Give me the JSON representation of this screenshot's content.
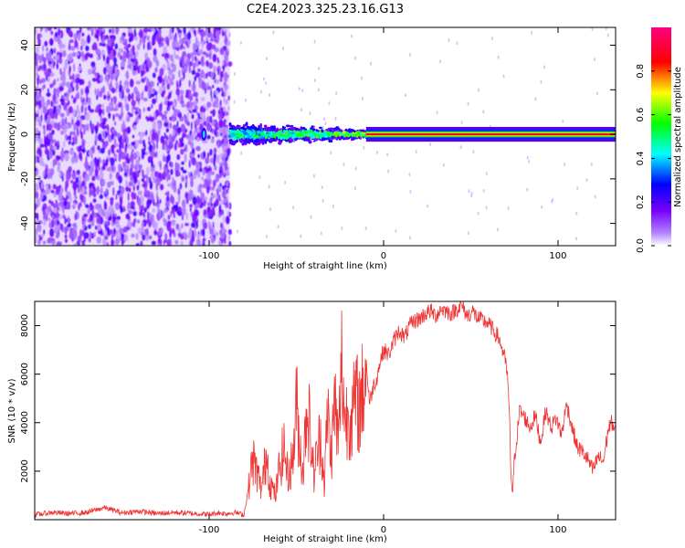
{
  "figure": {
    "title": "C2E4.2023.325.23.16.G13"
  },
  "chart_data": [
    {
      "type": "heatmap",
      "name": "spectrogram",
      "xlabel": "Height of straight line (km)",
      "ylabel": "Frequency (Hz)",
      "xlim": [
        -200,
        133
      ],
      "ylim": [
        -50,
        48
      ],
      "x_ticks": [
        -100,
        0,
        100
      ],
      "x_tick_labels": [
        "-100",
        "0",
        "100"
      ],
      "y_ticks": [
        -40,
        -20,
        0,
        20,
        40
      ],
      "y_tick_labels": [
        "-40",
        "-20",
        "0",
        "20",
        "40"
      ],
      "colorbar": {
        "label": "Normalized spectral amplitude",
        "range": [
          0,
          1
        ],
        "ticks": [
          0.0,
          0.2,
          0.4,
          0.6,
          0.8
        ],
        "tick_labels": [
          "0.0",
          "0.2",
          "0.4",
          "0.6",
          "0.8"
        ],
        "colormap": [
          "#ffffff",
          "#8000ff",
          "#0000ff",
          "#00ffff",
          "#00ff00",
          "#ffff00",
          "#ff0000",
          "#ff00ff"
        ]
      },
      "regions": [
        {
          "description": "noise",
          "x_range": [
            -200,
            -88
          ],
          "freq_range": [
            -50,
            48
          ],
          "amplitude": 0.12
        },
        {
          "description": "noisy carrier",
          "x_range": [
            -88,
            -10
          ],
          "freq_center": 0,
          "freq_halfwidth": 4,
          "amplitude": 0.45
        },
        {
          "description": "clean carrier",
          "x_range": [
            -10,
            133
          ],
          "freq_center": 0,
          "freq_halfwidth": 1.5,
          "amplitude": 0.9
        }
      ]
    },
    {
      "type": "line",
      "name": "snr",
      "xlabel": "Height of straight line (km)",
      "ylabel": "SNR (10 * v/v)",
      "xlim": [
        -200,
        133
      ],
      "ylim": [
        0,
        9000
      ],
      "x_ticks": [
        -100,
        0,
        100
      ],
      "x_tick_labels": [
        "-100",
        "0",
        "100"
      ],
      "y_ticks": [
        2000,
        4000,
        6000,
        8000
      ],
      "y_tick_labels": [
        "2000",
        "4000",
        "6000",
        "8000"
      ],
      "line_color": "#ee3333",
      "series": [
        {
          "x": [
            -200,
            -190,
            -180,
            -170,
            -160,
            -150,
            -140,
            -130,
            -120,
            -110,
            -100,
            -95,
            -90,
            -85,
            -80,
            -77,
            -75,
            -72,
            -70,
            -67,
            -65,
            -62,
            -60,
            -57,
            -55,
            -52,
            -50,
            -48,
            -46,
            -44,
            -42,
            -40,
            -38,
            -36,
            -34,
            -32,
            -30,
            -28,
            -26,
            -24,
            -22,
            -20,
            -18,
            -16,
            -14,
            -12,
            -10,
            -8,
            -6,
            -4,
            -2,
            0,
            3,
            6,
            9,
            12,
            15,
            18,
            21,
            24,
            27,
            30,
            33,
            36,
            39,
            42,
            45,
            48,
            51,
            54,
            57,
            60,
            63,
            66,
            69,
            71,
            72,
            73,
            74,
            75,
            78,
            81,
            84,
            87,
            90,
            93,
            96,
            99,
            102,
            105,
            108,
            111,
            114,
            117,
            120,
            123,
            126,
            129,
            131,
            133
          ],
          "y": [
            200,
            300,
            250,
            300,
            500,
            280,
            350,
            250,
            300,
            260,
            220,
            280,
            250,
            300,
            200,
            1500,
            2500,
            1800,
            1200,
            2800,
            1500,
            1000,
            2000,
            3000,
            1800,
            2500,
            4800,
            3000,
            2000,
            5000,
            3500,
            1800,
            2800,
            3500,
            1500,
            4500,
            2500,
            5000,
            3000,
            6500,
            4000,
            4500,
            4200,
            5000,
            4600,
            5200,
            6500,
            4800,
            5500,
            5800,
            6500,
            7000,
            6800,
            7400,
            7800,
            7500,
            8000,
            8200,
            8300,
            8500,
            8600,
            8400,
            8700,
            8600,
            8500,
            8700,
            8800,
            8400,
            8600,
            8300,
            8200,
            8100,
            7800,
            7500,
            6800,
            6000,
            4500,
            2000,
            1000,
            2500,
            4500,
            4200,
            3800,
            4300,
            3200,
            4500,
            3800,
            4200,
            3500,
            4800,
            3800,
            3000,
            2800,
            2500,
            2000,
            2600,
            2400,
            3800,
            4000,
            3600
          ]
        }
      ]
    }
  ]
}
